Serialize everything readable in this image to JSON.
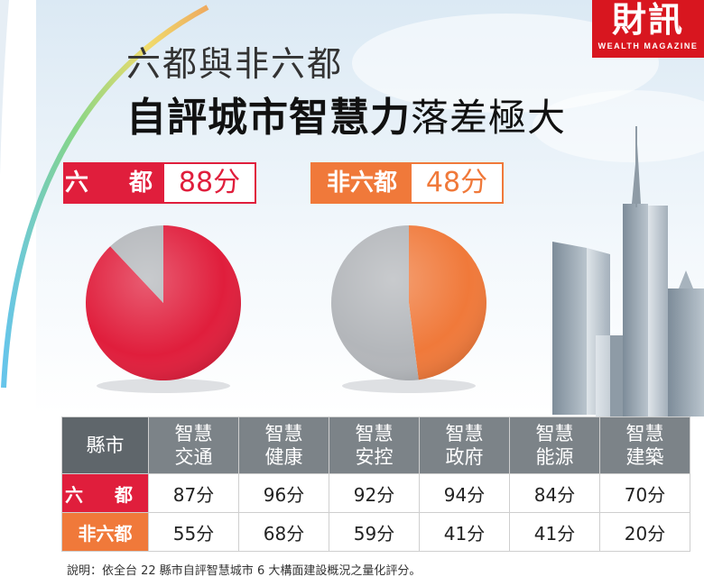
{
  "logo": {
    "main": "財訊",
    "sub": "WEALTH MAGAZINE"
  },
  "title": {
    "line1": "六都與非六都",
    "line2_bold": "自評城市智慧力",
    "line2_normal": "落差極大"
  },
  "badges": [
    {
      "label": "六 都",
      "value": "88分",
      "color": "#e01e3c"
    },
    {
      "label": "非六都",
      "value": "48分",
      "color": "#f0793a"
    }
  ],
  "chart_data": [
    {
      "type": "pie",
      "title": "六 都",
      "score_label": "88分",
      "slices": [
        {
          "value": 88,
          "color": "#e01e3c"
        },
        {
          "value": 12,
          "color": "#b3b6ba"
        }
      ]
    },
    {
      "type": "pie",
      "title": "非六都",
      "score_label": "48分",
      "slices": [
        {
          "value": 48,
          "color": "#f0793a"
        },
        {
          "value": 52,
          "color": "#b3b6ba"
        }
      ]
    },
    {
      "type": "table",
      "columns": [
        "縣市",
        "智慧交通",
        "智慧健康",
        "智慧安控",
        "智慧政府",
        "智慧能源",
        "智慧建築"
      ],
      "rows": [
        {
          "label": "六 都",
          "values": [
            "87分",
            "96分",
            "92分",
            "94分",
            "84分",
            "70分"
          ]
        },
        {
          "label": "非六都",
          "values": [
            "55分",
            "68分",
            "59分",
            "41分",
            "41分",
            "20分"
          ]
        }
      ]
    }
  ],
  "table": {
    "corner": "縣市",
    "headers": [
      {
        "l1": "智慧",
        "l2": "交通"
      },
      {
        "l1": "智慧",
        "l2": "健康"
      },
      {
        "l1": "智慧",
        "l2": "安控"
      },
      {
        "l1": "智慧",
        "l2": "政府"
      },
      {
        "l1": "智慧",
        "l2": "能源"
      },
      {
        "l1": "智慧",
        "l2": "建築"
      }
    ],
    "rows": [
      {
        "label": "六 都",
        "cells": [
          "87分",
          "96分",
          "92分",
          "94分",
          "84分",
          "70分"
        ]
      },
      {
        "label": "非六都",
        "cells": [
          "55分",
          "68分",
          "59分",
          "41分",
          "41分",
          "20分"
        ]
      }
    ]
  },
  "note": "說明：依全台 22 縣市自評智慧城市 6 大構面建設概況之量化評分。"
}
